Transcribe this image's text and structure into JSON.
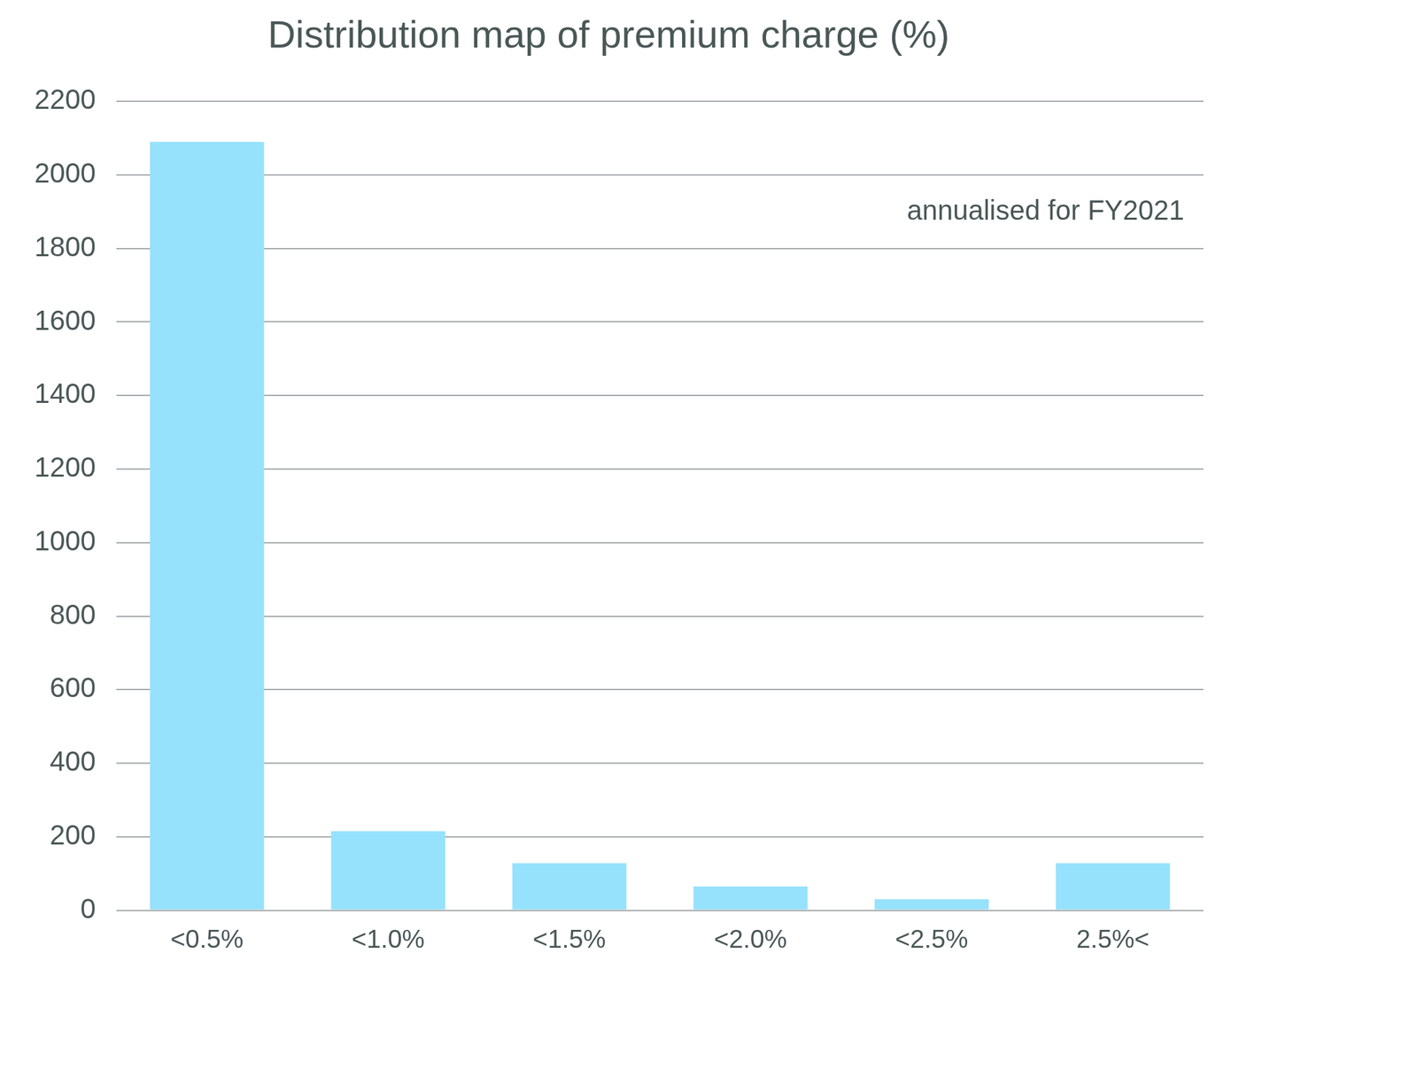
{
  "chart_data": {
    "type": "bar",
    "title": "Distribution map of premium charge (%)",
    "annotation": "annualised for FY2021",
    "categories": [
      "<0.5%",
      "<1.0%",
      "<1.5%",
      "<2.0%",
      "<2.5%",
      "2.5%<"
    ],
    "values": [
      2090,
      215,
      128,
      65,
      30,
      128
    ],
    "color": "#96e2fc",
    "ylim": [
      0,
      2200
    ],
    "yticks": [
      0,
      200,
      400,
      600,
      800,
      1000,
      1200,
      1400,
      1600,
      1800,
      2000,
      2200
    ],
    "grid": true
  }
}
